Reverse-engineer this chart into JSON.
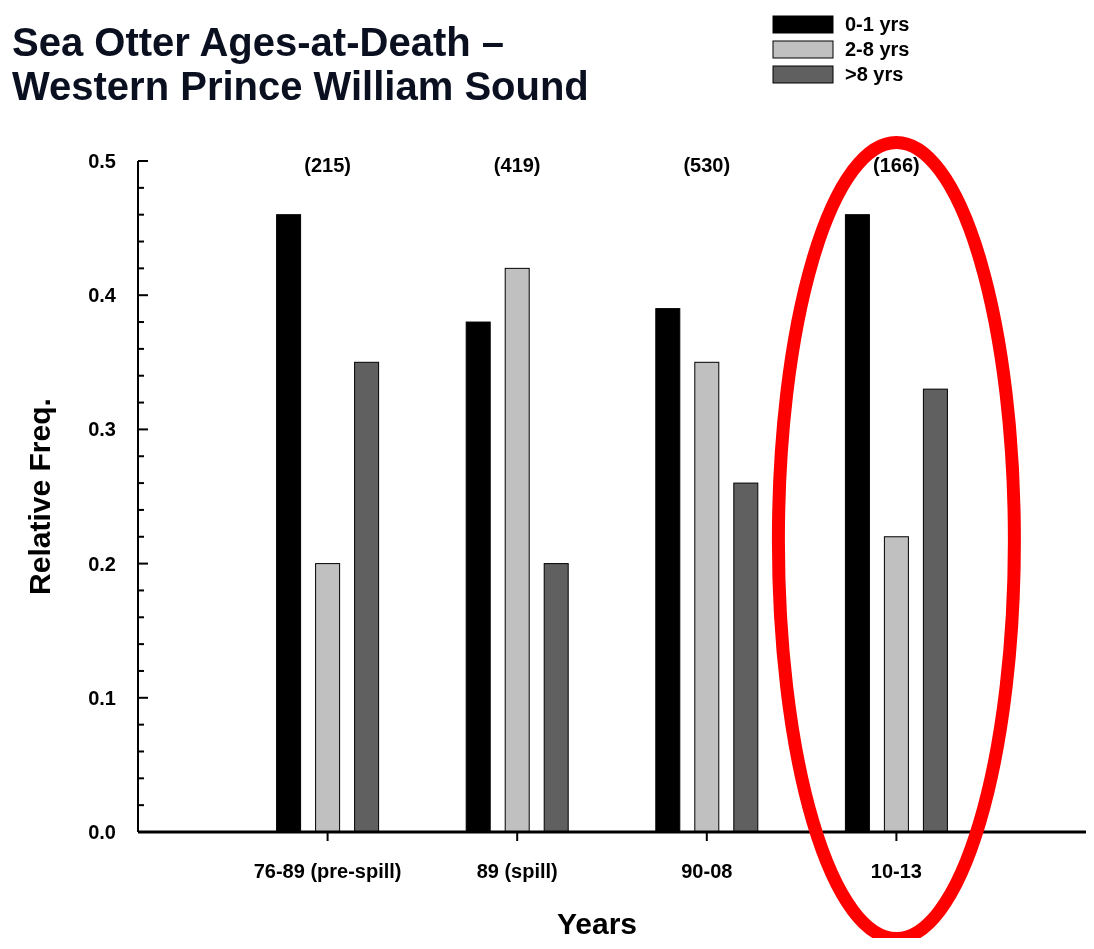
{
  "chart_data": {
    "type": "bar",
    "title": "Sea Otter Ages-at-Death –\nWestern Prince William Sound",
    "xlabel": "Years",
    "ylabel": "Relative Freq.",
    "categories": [
      "76-89 (pre-spill)",
      "89 (spill)",
      "90-08",
      "10-13"
    ],
    "series": [
      {
        "name": "0-1 yrs",
        "color": "#000000",
        "values": [
          0.46,
          0.38,
          0.39,
          0.46
        ]
      },
      {
        "name": "2-8 yrs",
        "color": "#c0c0c0",
        "values": [
          0.2,
          0.42,
          0.35,
          0.22
        ]
      },
      {
        "name": ">8 yrs",
        "color": "#606060",
        "values": [
          0.35,
          0.2,
          0.26,
          0.33
        ]
      }
    ],
    "ylim": [
      0,
      0.5
    ],
    "yticks": [
      {
        "value": 0,
        "label": "0.0"
      },
      {
        "value": 0.02,
        "label": null
      },
      {
        "value": 0.04,
        "label": null
      },
      {
        "value": 0.06,
        "label": null
      },
      {
        "value": 0.08,
        "label": null
      },
      {
        "value": 0.1,
        "label": "0.1"
      },
      {
        "value": 0.12,
        "label": null
      },
      {
        "value": 0.14,
        "label": null
      },
      {
        "value": 0.16,
        "label": null
      },
      {
        "value": 0.18,
        "label": null
      },
      {
        "value": 0.2,
        "label": "0.2"
      },
      {
        "value": 0.22,
        "label": null
      },
      {
        "value": 0.24,
        "label": null
      },
      {
        "value": 0.26,
        "label": null
      },
      {
        "value": 0.28,
        "label": null
      },
      {
        "value": 0.3,
        "label": "0.3"
      },
      {
        "value": 0.32,
        "label": null
      },
      {
        "value": 0.34,
        "label": null
      },
      {
        "value": 0.36,
        "label": null
      },
      {
        "value": 0.38,
        "label": null
      },
      {
        "value": 0.4,
        "label": "0.4"
      },
      {
        "value": 0.42,
        "label": null
      },
      {
        "value": 0.44,
        "label": null
      },
      {
        "value": 0.46,
        "label": null
      },
      {
        "value": 0.48,
        "label": null
      },
      {
        "value": 0.5,
        "label": "0.5"
      }
    ],
    "annotations": [
      "(215)",
      "(419)",
      "(530)",
      "(166)"
    ],
    "legend": "top right",
    "grid": false
  }
}
